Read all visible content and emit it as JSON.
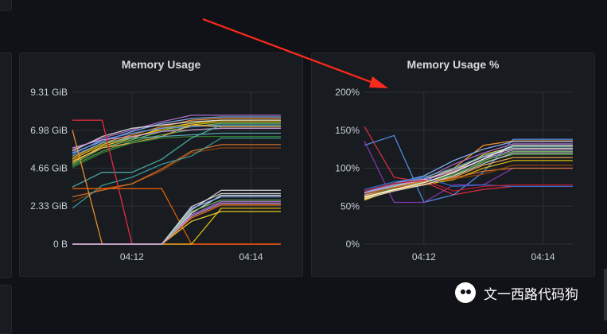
{
  "colors": {
    "background": "#111217",
    "panel": "#181b1f",
    "grid": "#2f3136",
    "annotation_arrow": "#ff2a1d"
  },
  "panels": [
    {
      "title": "Memory Usage",
      "y_ticks": [
        "9.31 GiB",
        "6.98 GiB",
        "4.66 GiB",
        "2.33 GiB",
        "0 B"
      ],
      "x_ticks": [
        "04:12",
        "04:14"
      ]
    },
    {
      "title": "Memory Usage %",
      "y_ticks": [
        "200%",
        "150%",
        "100%",
        "50%",
        "0%"
      ],
      "x_ticks": [
        "04:12",
        "04:14"
      ]
    }
  ],
  "watermark": {
    "icon": "wechat-icon",
    "text": "文一西路代码狗"
  },
  "chart_data": [
    {
      "type": "line",
      "title": "Memory Usage",
      "x": [
        "04:11:00",
        "04:11:30",
        "04:12:00",
        "04:12:30",
        "04:13:00",
        "04:13:30",
        "04:14:00",
        "04:14:30"
      ],
      "ylim": [
        0,
        9.31
      ],
      "yunit": "GiB",
      "y_ticks": [
        0,
        2.33,
        4.66,
        6.98,
        9.31
      ],
      "x_ticks": [
        "04:12",
        "04:14"
      ],
      "series": [
        {
          "color": "#8ab8ff",
          "values": [
            5.6,
            6.3,
            6.9,
            7.4,
            7.7,
            7.8,
            7.8,
            7.8
          ]
        },
        {
          "color": "#fade2a",
          "values": [
            5.0,
            6.0,
            6.5,
            7.1,
            7.4,
            7.6,
            7.6,
            7.6
          ]
        },
        {
          "color": "#f2cc0c",
          "values": [
            5.2,
            6.1,
            6.6,
            7.0,
            7.3,
            7.5,
            7.5,
            7.5
          ]
        },
        {
          "color": "#ff9830",
          "values": [
            5.3,
            6.2,
            6.7,
            7.2,
            7.6,
            7.7,
            7.7,
            7.7
          ]
        },
        {
          "color": "#b877d9",
          "values": [
            5.8,
            6.5,
            7.0,
            7.5,
            7.9,
            7.9,
            7.9,
            7.9
          ]
        },
        {
          "color": "#73bf69",
          "values": [
            4.9,
            5.9,
            6.4,
            6.9,
            7.2,
            7.4,
            7.4,
            7.4
          ]
        },
        {
          "color": "#5794f2",
          "values": [
            5.5,
            6.4,
            6.8,
            7.1,
            7.2,
            7.3,
            7.3,
            7.3
          ]
        },
        {
          "color": "#e0e0e0",
          "values": [
            5.7,
            6.6,
            7.1,
            7.3,
            7.5,
            7.6,
            7.6,
            7.6
          ]
        },
        {
          "color": "#56a64b",
          "values": [
            4.8,
            5.7,
            6.3,
            6.7,
            7.0,
            7.1,
            7.1,
            7.1
          ]
        },
        {
          "color": "#ffb357",
          "values": [
            5.1,
            5.9,
            6.2,
            6.6,
            7.3,
            7.2,
            7.2,
            7.2
          ]
        },
        {
          "color": "#64b0c8",
          "values": [
            5.4,
            6.2,
            6.5,
            6.6,
            6.7,
            6.8,
            6.8,
            6.8
          ]
        },
        {
          "color": "#ca95e5",
          "values": [
            5.9,
            6.4,
            6.6,
            6.9,
            7.0,
            7.1,
            7.1,
            7.1
          ]
        },
        {
          "color": "#37872d",
          "values": [
            4.7,
            5.6,
            6.2,
            6.5,
            6.6,
            6.6,
            6.6,
            6.6
          ]
        },
        {
          "color": "#99440a",
          "values": [
            2.6,
            3.4,
            3.7,
            4.5,
            5.6,
            5.9,
            5.9,
            5.9
          ]
        },
        {
          "color": "#e0752d",
          "values": [
            2.9,
            3.3,
            3.7,
            4.6,
            5.7,
            6.1,
            6.1,
            6.1
          ]
        },
        {
          "color": "#4db6ac",
          "values": [
            3.5,
            4.4,
            4.4,
            5.2,
            6.5,
            7.3,
            7.3,
            7.3
          ]
        },
        {
          "color": "#3ba6a6",
          "values": [
            2.2,
            3.6,
            4.1,
            4.9,
            5.4,
            6.5,
            6.5,
            6.5
          ]
        },
        {
          "color": "#ff9830",
          "values": [
            7.0,
            0,
            0,
            0,
            0,
            0,
            0,
            0
          ]
        },
        {
          "color": "#c4162a",
          "values": [
            7.6,
            7.6,
            0,
            0,
            0,
            0,
            0,
            0
          ]
        },
        {
          "color": "#e02f44",
          "values": [
            7.6,
            7.6,
            0,
            0,
            0,
            0,
            0,
            0
          ]
        },
        {
          "color": "#fa6400",
          "values": [
            3.4,
            3.4,
            3.4,
            3.4,
            0,
            0,
            0,
            0
          ]
        },
        {
          "color": "#d6d6d6",
          "values": [
            0,
            0,
            0,
            0,
            2.1,
            3.3,
            3.3,
            3.3
          ]
        },
        {
          "color": "#ffffff",
          "values": [
            0,
            0,
            0,
            0,
            1.9,
            3.0,
            3.0,
            3.0
          ]
        },
        {
          "color": "#f2cc0c",
          "values": [
            0,
            0,
            0,
            0,
            0,
            2.2,
            2.2,
            2.2
          ]
        },
        {
          "color": "#fade2a",
          "values": [
            0,
            0,
            0,
            0,
            1.4,
            2.0,
            2.0,
            2.0
          ]
        },
        {
          "color": "#ff780a",
          "values": [
            0,
            0,
            0,
            0,
            1.6,
            2.4,
            2.4,
            2.4
          ]
        },
        {
          "color": "#8ab8ff",
          "values": [
            0,
            0,
            0,
            0,
            2.2,
            2.9,
            2.9,
            2.9
          ]
        },
        {
          "color": "#b877d9",
          "values": [
            0,
            0,
            0,
            0,
            1.8,
            2.6,
            2.6,
            2.6
          ]
        },
        {
          "color": "#73bf69",
          "values": [
            0,
            0,
            0,
            0,
            2.0,
            2.7,
            2.7,
            2.7
          ]
        },
        {
          "color": "#e0e0e0",
          "values": [
            0,
            0,
            0,
            0,
            2.3,
            3.1,
            3.1,
            3.1
          ]
        },
        {
          "color": "#ca95e5",
          "values": [
            0,
            0,
            0,
            0,
            1.7,
            2.5,
            2.5,
            2.5
          ]
        }
      ]
    },
    {
      "type": "line",
      "title": "Memory Usage %",
      "x": [
        "04:11:00",
        "04:11:30",
        "04:12:00",
        "04:12:30",
        "04:13:00",
        "04:13:30",
        "04:14:00",
        "04:14:30"
      ],
      "ylim": [
        0,
        200
      ],
      "yunit": "%",
      "y_ticks": [
        0,
        50,
        100,
        150,
        200
      ],
      "x_ticks": [
        "04:12",
        "04:14"
      ],
      "series": [
        {
          "color": "#e02f44",
          "values": [
            155,
            88,
            82,
            65,
            72,
            76,
            76,
            76
          ]
        },
        {
          "color": "#5794f2",
          "values": [
            130,
            143,
            55,
            65,
            95,
            138,
            138,
            138
          ]
        },
        {
          "color": "#8f3bb8",
          "values": [
            136,
            55,
            55,
            78,
            78,
            100,
            100,
            100
          ]
        },
        {
          "color": "#ff9830",
          "values": [
            66,
            78,
            83,
            100,
            130,
            136,
            136,
            136
          ]
        },
        {
          "color": "#fade2a",
          "values": [
            58,
            72,
            80,
            95,
            118,
            128,
            128,
            128
          ]
        },
        {
          "color": "#73bf69",
          "values": [
            60,
            74,
            82,
            90,
            110,
            122,
            122,
            122
          ]
        },
        {
          "color": "#b877d9",
          "values": [
            70,
            80,
            86,
            105,
            120,
            132,
            132,
            132
          ]
        },
        {
          "color": "#8ab8ff",
          "values": [
            68,
            80,
            90,
            110,
            125,
            135,
            135,
            135
          ]
        },
        {
          "color": "#e0e0e0",
          "values": [
            64,
            76,
            85,
            98,
            115,
            126,
            126,
            126
          ]
        },
        {
          "color": "#56a64b",
          "values": [
            62,
            73,
            80,
            92,
            108,
            118,
            118,
            118
          ]
        },
        {
          "color": "#f2cc0c",
          "values": [
            61,
            72,
            78,
            85,
            100,
            110,
            110,
            110
          ]
        },
        {
          "color": "#ca95e5",
          "values": [
            67,
            78,
            84,
            96,
            112,
            124,
            124,
            124
          ]
        },
        {
          "color": "#64b0c8",
          "values": [
            65,
            77,
            88,
            100,
            116,
            128,
            128,
            128
          ]
        },
        {
          "color": "#ffb357",
          "values": [
            59,
            71,
            79,
            88,
            104,
            114,
            114,
            114
          ]
        },
        {
          "color": "#e0752d",
          "values": [
            63,
            75,
            83,
            87,
            96,
            100,
            100,
            100
          ]
        },
        {
          "color": "#3274d9",
          "values": [
            72,
            82,
            88,
            76,
            78,
            76,
            76,
            76
          ]
        },
        {
          "color": "#c4162a",
          "values": [
            70,
            80,
            84,
            70,
            76,
            78,
            78,
            78
          ]
        },
        {
          "color": "#99440a",
          "values": [
            66,
            74,
            80,
            86,
            92,
            104,
            104,
            104
          ]
        },
        {
          "color": "#d6d6d6",
          "values": [
            60,
            70,
            78,
            90,
            106,
            120,
            120,
            120
          ]
        },
        {
          "color": "#ffffff",
          "values": [
            62,
            72,
            81,
            94,
            112,
            130,
            130,
            130
          ]
        }
      ]
    }
  ]
}
